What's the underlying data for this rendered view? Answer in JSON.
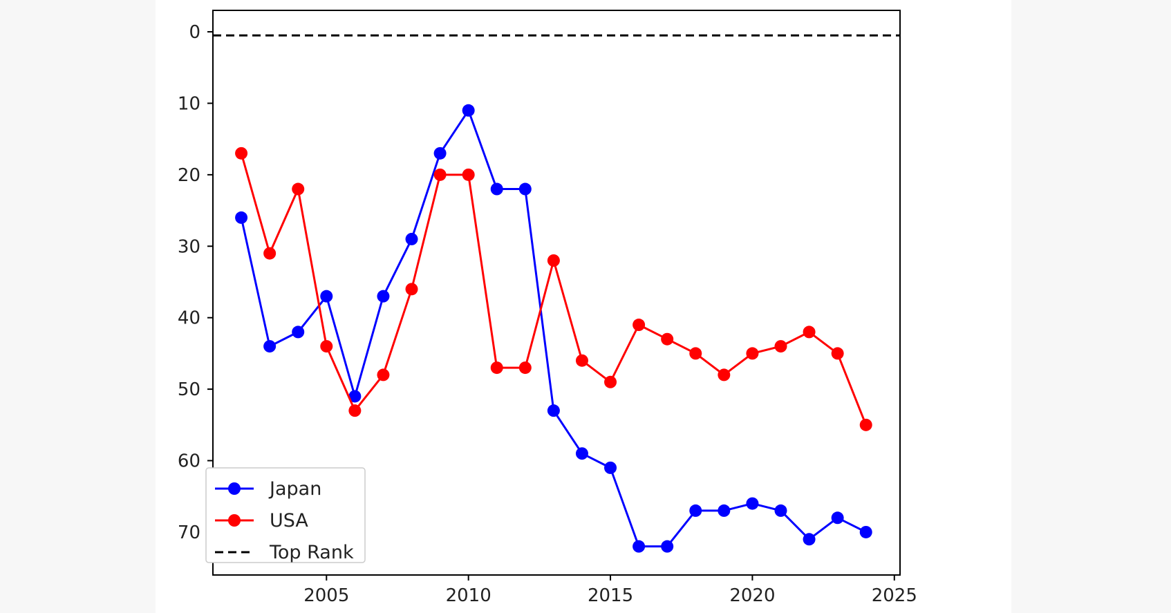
{
  "chart_data": {
    "type": "line",
    "title": "",
    "xlabel": "",
    "ylabel": "",
    "xlim": [
      2001,
      2025.2
    ],
    "ylim": [
      76,
      -3
    ],
    "y_inverted": true,
    "grid": false,
    "legend_placement": "bottom-left",
    "x_ticks": [
      "2005",
      "2010",
      "2015",
      "2020",
      "2025"
    ],
    "y_ticks": [
      "0",
      "10",
      "20",
      "30",
      "40",
      "50",
      "60",
      "70"
    ],
    "x": [
      2002,
      2003,
      2004,
      2005,
      2006,
      2007,
      2008,
      2009,
      2010,
      2011,
      2012,
      2013,
      2014,
      2015,
      2016,
      2017,
      2018,
      2019,
      2020,
      2021,
      2022,
      2023,
      2024
    ],
    "series": [
      {
        "name": "Japan",
        "color": "#0000ff",
        "marker": "circle",
        "values": [
          26,
          44,
          42,
          37,
          51,
          37,
          29,
          17,
          11,
          22,
          22,
          53,
          59,
          61,
          72,
          72,
          67,
          67,
          66,
          67,
          71,
          68,
          70
        ]
      },
      {
        "name": "USA",
        "color": "#ff0000",
        "marker": "circle",
        "values": [
          17,
          31,
          22,
          44,
          53,
          48,
          36,
          20,
          20,
          47,
          47,
          32,
          46,
          49,
          41,
          43,
          45,
          48,
          45,
          44,
          42,
          45,
          55
        ]
      }
    ],
    "reference_line": {
      "name": "Top Rank",
      "value": 0.5,
      "style": "dashed",
      "color": "#000000"
    }
  }
}
